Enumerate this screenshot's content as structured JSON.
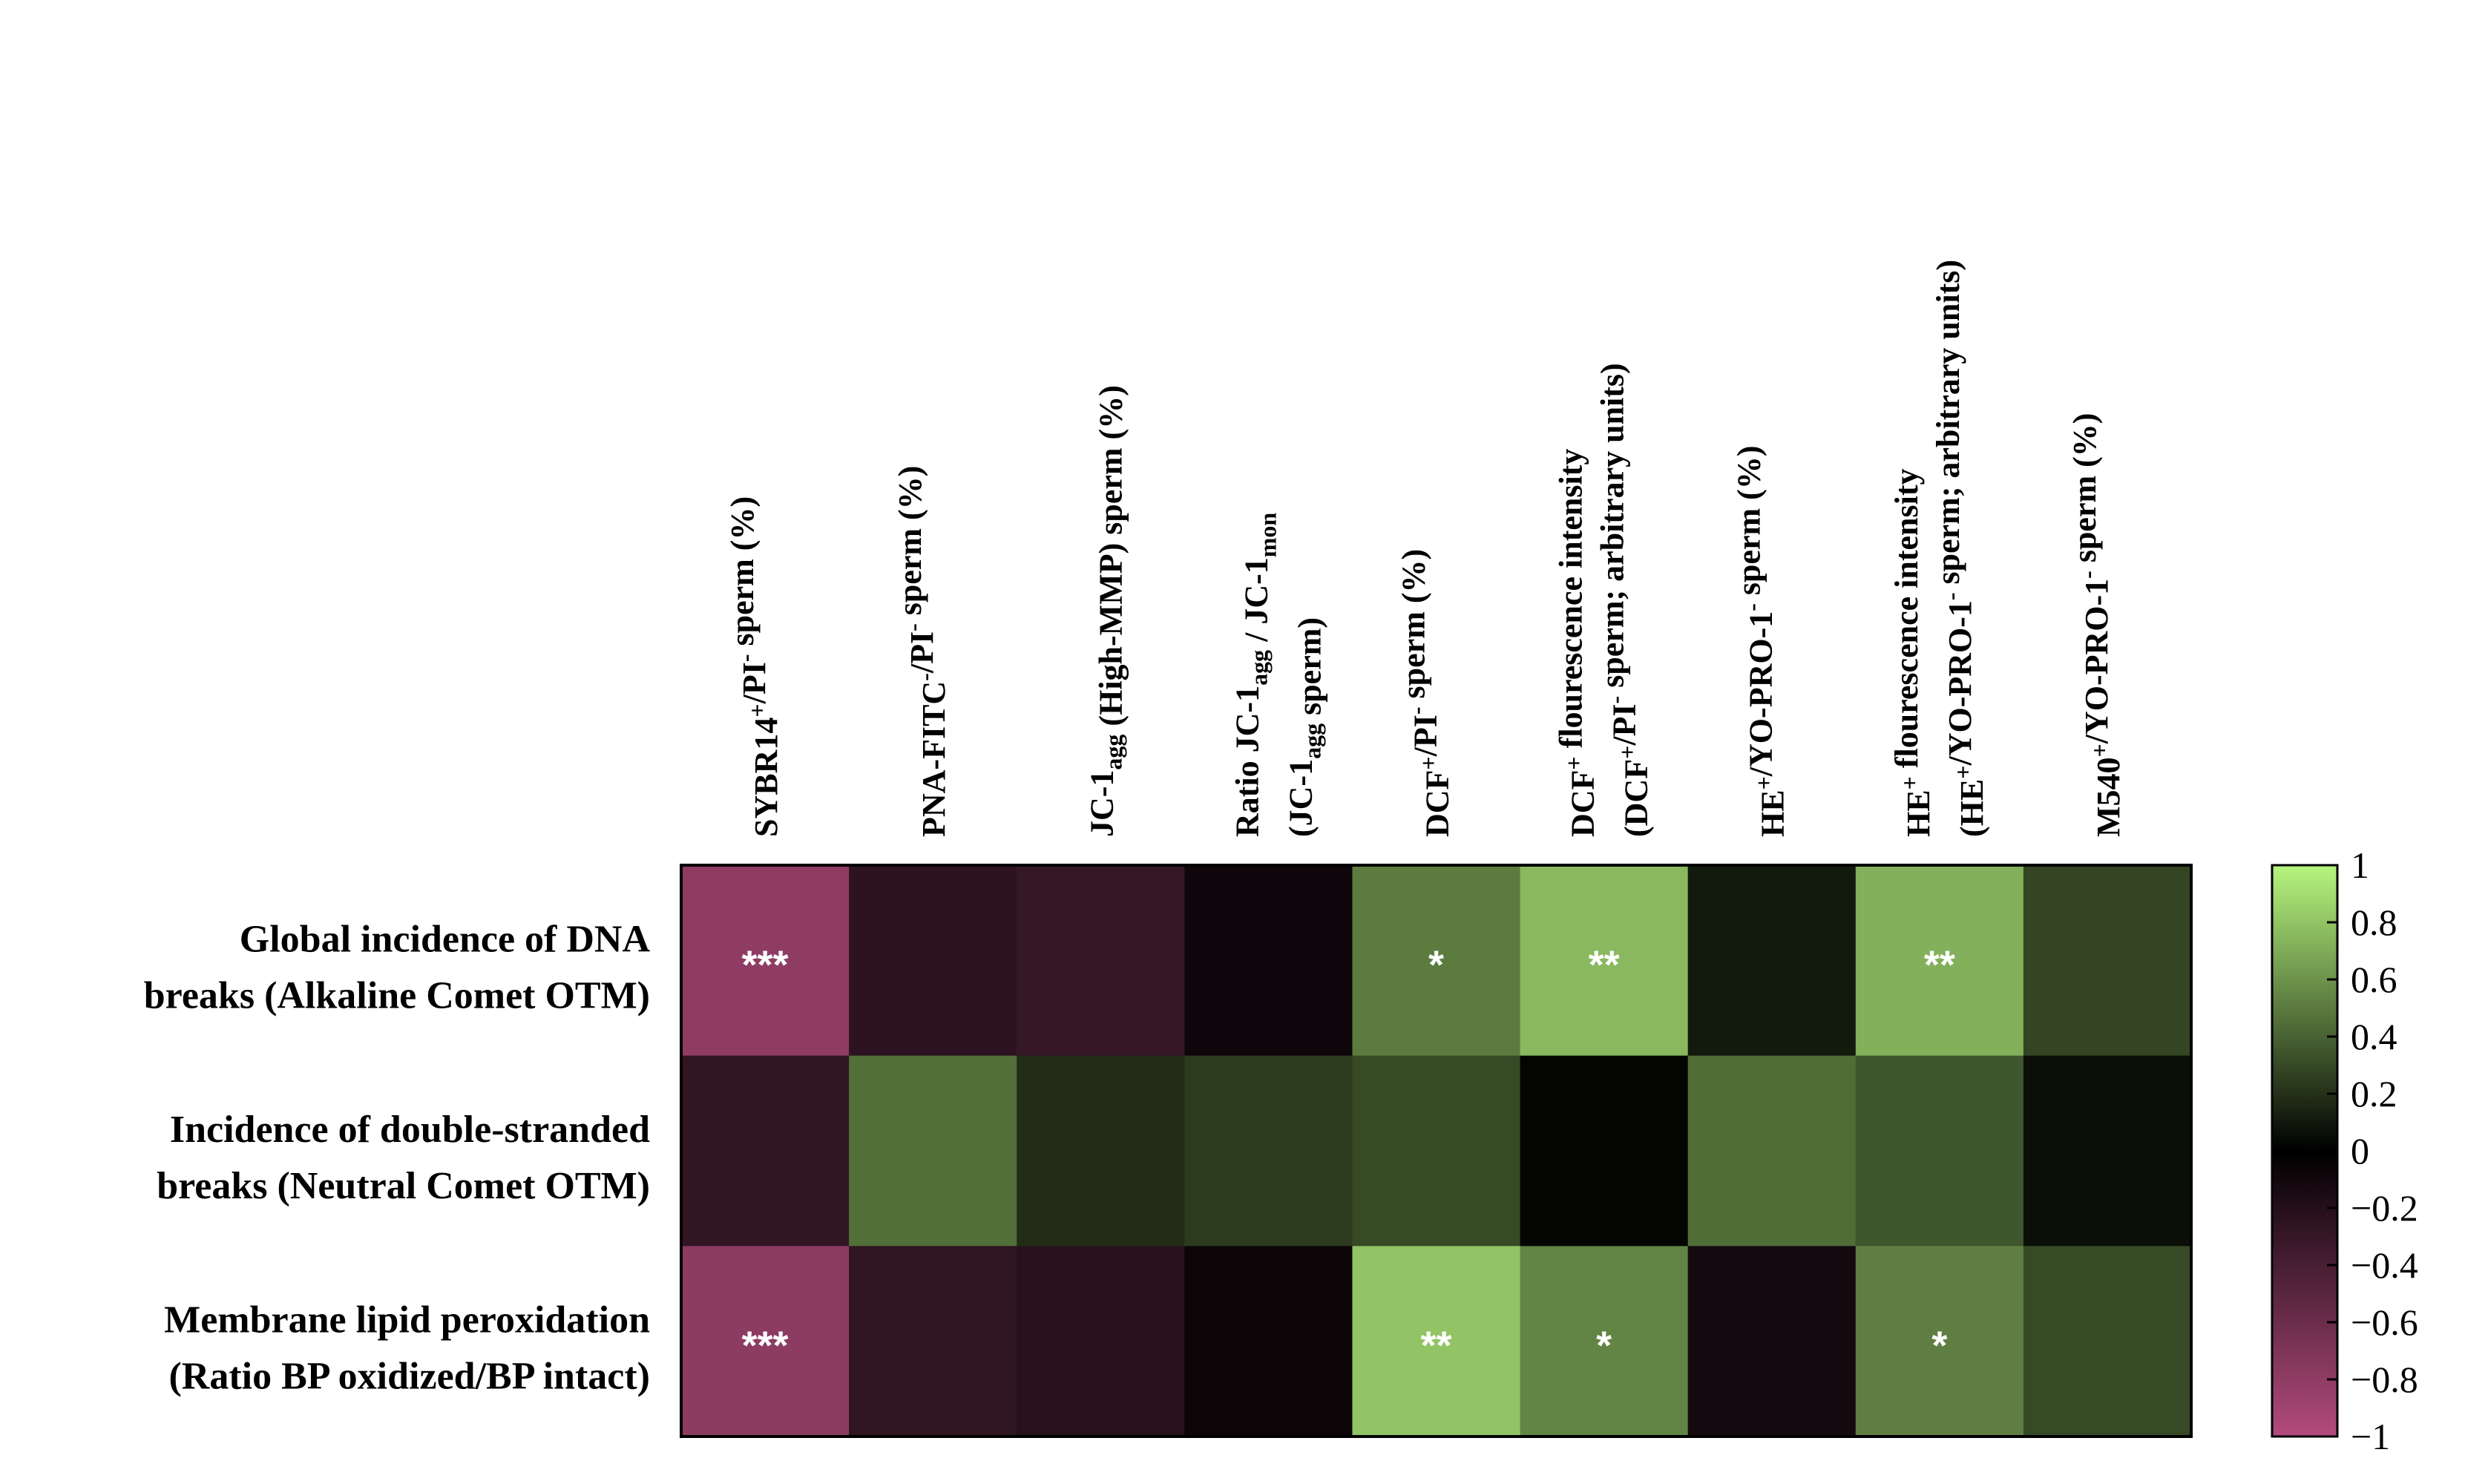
{
  "chart_data": {
    "type": "heatmap",
    "title": "",
    "columns": [
      [
        {
          "t": "SYBR14"
        },
        {
          "t": "+",
          "s": "sup"
        },
        {
          "t": "/PI"
        },
        {
          "t": "-",
          "s": "sup"
        },
        {
          "t": " sperm (%)"
        }
      ],
      [
        {
          "t": "PNA-FITC"
        },
        {
          "t": "-",
          "s": "sup"
        },
        {
          "t": "/PI"
        },
        {
          "t": "-",
          "s": "sup"
        },
        {
          "t": " sperm (%)"
        }
      ],
      [
        {
          "t": "JC-1"
        },
        {
          "t": "agg",
          "s": "sub"
        },
        {
          "t": " (High-MMP) sperm (%)"
        }
      ],
      [
        {
          "t": "Ratio JC-1"
        },
        {
          "t": "agg",
          "s": "sub"
        },
        {
          "t": " / JC-1"
        },
        {
          "t": "mon",
          "s": "sub"
        }
      ],
      [
        {
          "t": "DCF"
        },
        {
          "t": "+",
          "s": "sup"
        },
        {
          "t": "/PI"
        },
        {
          "t": "-",
          "s": "sup"
        },
        {
          "t": " sperm (%)"
        }
      ],
      [
        {
          "t": "DCF"
        },
        {
          "t": "+",
          "s": "sup"
        },
        {
          "t": " flourescence intensity"
        }
      ],
      [
        {
          "t": "HE"
        },
        {
          "t": "+",
          "s": "sup"
        },
        {
          "t": "/YO-PRO-1"
        },
        {
          "t": "-",
          "s": "sup"
        },
        {
          "t": " sperm (%)"
        }
      ],
      [
        {
          "t": "HE"
        },
        {
          "t": "+",
          "s": "sup"
        },
        {
          "t": " flourescence intensity"
        }
      ],
      [
        {
          "t": "M540"
        },
        {
          "t": "+",
          "s": "sup"
        },
        {
          "t": "/YO-PRO-1"
        },
        {
          "t": "-",
          "s": "sup"
        },
        {
          "t": " sperm (%)"
        }
      ]
    ],
    "column_second_lines": {
      "3": [
        {
          "t": "(JC-1"
        },
        {
          "t": "agg",
          "s": "sub"
        },
        {
          "t": " sperm)"
        }
      ],
      "5": [
        {
          "t": "(DCF"
        },
        {
          "t": "+",
          "s": "sup"
        },
        {
          "t": "/PI"
        },
        {
          "t": "-",
          "s": "sup"
        },
        {
          "t": " sperm; arbitrary units)"
        }
      ],
      "7": [
        {
          "t": "(HE"
        },
        {
          "t": "+",
          "s": "sup"
        },
        {
          "t": "/YO-PRO-1"
        },
        {
          "t": "-",
          "s": "sup"
        },
        {
          "t": " sperm; arbitrary units)"
        }
      ]
    },
    "rows": [
      [
        "Global incidence of DNA",
        "breaks (Alkaline Comet OTM)"
      ],
      [
        "Incidence of double-stranded",
        "breaks (Neutral Comet OTM)"
      ],
      [
        "Membrane lipid peroxidation",
        "(Ratio BP oxidized/BP intact)"
      ]
    ],
    "values": [
      [
        -0.8,
        -0.25,
        -0.3,
        -0.08,
        0.5,
        0.75,
        0.1,
        0.72,
        0.28
      ],
      [
        -0.28,
        0.45,
        0.18,
        0.24,
        0.3,
        0.02,
        0.44,
        0.35,
        0.06
      ],
      [
        -0.78,
        -0.26,
        -0.22,
        -0.06,
        0.8,
        0.54,
        -0.12,
        0.52,
        0.3
      ]
    ],
    "significance": [
      [
        "***",
        "",
        "",
        "",
        "*",
        "**",
        "",
        "**",
        ""
      ],
      [
        "",
        "",
        "",
        "",
        "",
        "",
        "",
        "",
        ""
      ],
      [
        "***",
        "",
        "",
        "",
        "**",
        "*",
        "",
        "*",
        ""
      ]
    ],
    "colorscale": {
      "min": -1,
      "max": 1,
      "stops": [
        {
          "v": -1,
          "color": "#b34b7e"
        },
        {
          "v": 0,
          "color": "#000000"
        },
        {
          "v": 1,
          "color": "#b6f57e"
        }
      ]
    },
    "colorbar_ticks": [
      "1",
      "0.8",
      "0.6",
      "0.4",
      "0.2",
      "0",
      "−0.2",
      "−0.4",
      "−0.6",
      "−0.8",
      "−1"
    ],
    "colorbar_tick_values": [
      1,
      0.8,
      0.6,
      0.4,
      0.2,
      0,
      -0.2,
      -0.4,
      -0.6,
      -0.8,
      -1
    ],
    "legend_position": "right",
    "grid": false
  }
}
